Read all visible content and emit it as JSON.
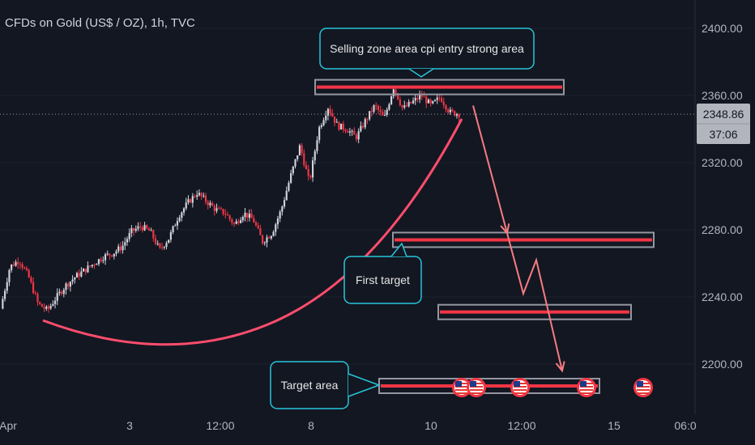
{
  "header": {
    "title": "CFDs on Gold (US$ / OZ), 1h, TVC"
  },
  "price_badge": {
    "price": "2348.86",
    "countdown": "37:06"
  },
  "annotations": {
    "selling_zone": "Selling zone area cpi entry strong area",
    "first_target": "First target",
    "target_area": "Target area"
  },
  "icons": {
    "event_marker": "us-flag-icon"
  },
  "colors": {
    "background": "#131722",
    "bull": "#d1d4dc",
    "bear": "#f23645",
    "zone_line": "#f23645",
    "zone_border": "#9598a1",
    "callout_border": "#26c6da",
    "curve": "#ff4d6d",
    "arrow": "#f77c80"
  },
  "chart_data": {
    "type": "candlestick",
    "title": "CFDs on Gold (US$ / OZ), 1h, TVC",
    "ylim": [
      2180,
      2420
    ],
    "yticks": [
      2200,
      2240,
      2280,
      2320,
      2360,
      2400
    ],
    "ytick_labels": [
      "2200.00",
      "2240.00",
      "2280.00",
      "2320.00",
      "2360.00",
      "2400.00"
    ],
    "xtick_labels": [
      "Apr",
      "3",
      "12:00",
      "8",
      "10",
      "12:00",
      "15",
      "06:0"
    ],
    "current_price": 2348.86,
    "price_path": [
      2233,
      2258,
      2262,
      2252,
      2236,
      2232,
      2240,
      2247,
      2252,
      2256,
      2260,
      2264,
      2266,
      2270,
      2279,
      2282,
      2279,
      2268,
      2275,
      2288,
      2296,
      2302,
      2297,
      2292,
      2290,
      2283,
      2290,
      2286,
      2273,
      2278,
      2292,
      2312,
      2330,
      2308,
      2340,
      2353,
      2342,
      2340,
      2335,
      2345,
      2354,
      2346,
      2365,
      2352,
      2356,
      2360,
      2354,
      2359,
      2350,
      2349
    ],
    "zones": [
      {
        "name": "Selling zone area cpi entry strong area",
        "price": 2365
      },
      {
        "name": "First target",
        "price": 2274
      },
      {
        "name": "",
        "price": 2231
      },
      {
        "name": "Target area",
        "price": 2187
      }
    ],
    "projection_path": [
      2354,
      2278,
      2242,
      2262,
      2196
    ]
  }
}
